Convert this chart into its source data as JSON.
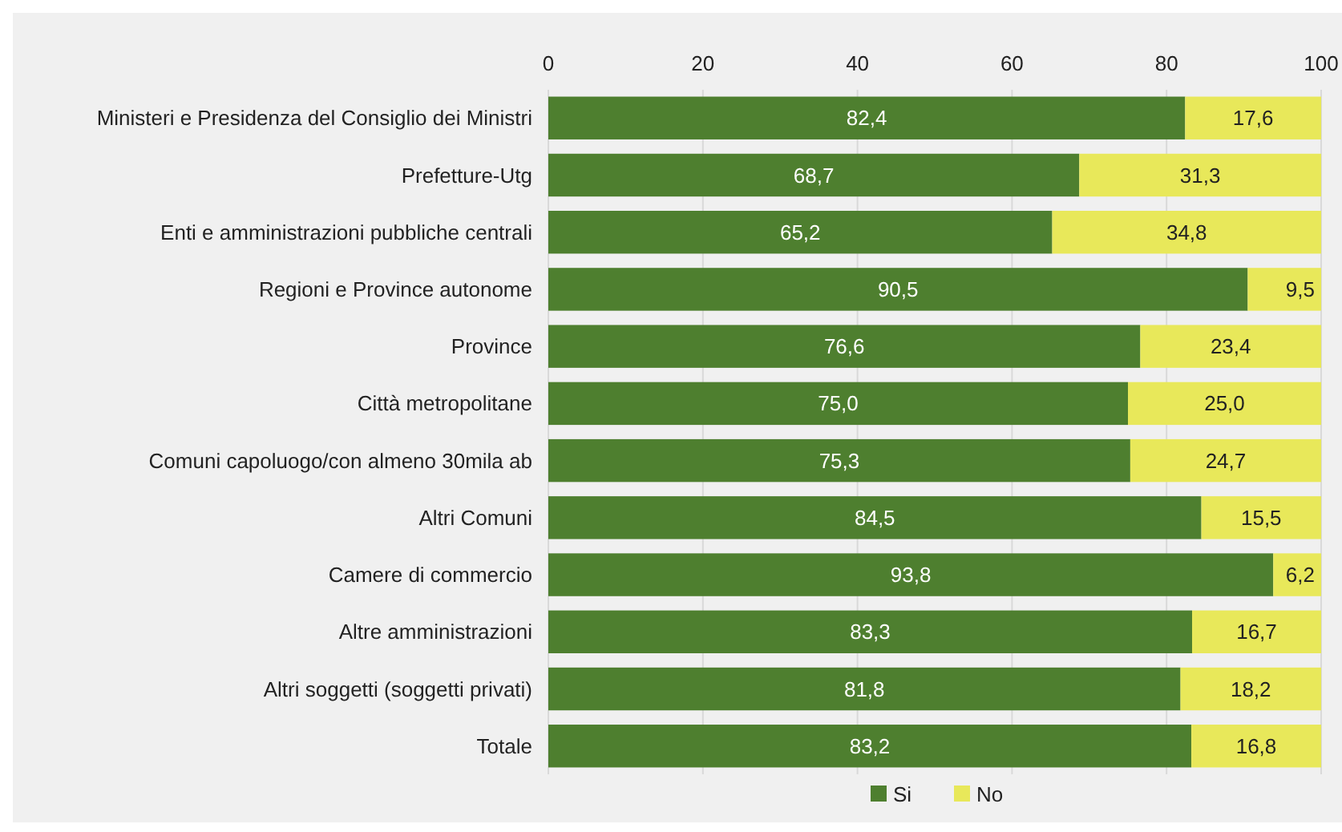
{
  "chart_data": {
    "type": "bar",
    "orientation": "horizontal",
    "stacked": true,
    "categories": [
      "Ministeri e Presidenza del Consiglio dei Ministri",
      "Prefetture-Utg",
      "Enti e amministrazioni pubbliche centrali",
      "Regioni e Province autonome",
      "Province",
      "Città metropolitane",
      "Comuni capoluogo/con almeno 30mila ab",
      "Altri Comuni",
      "Camere di commercio",
      "Altre amministrazioni ",
      "Altri soggetti (soggetti privati)",
      "Totale"
    ],
    "series": [
      {
        "name": "Si",
        "color": "#4e7f2f",
        "values": [
          82.4,
          68.7,
          65.2,
          90.5,
          76.6,
          75.0,
          75.3,
          84.5,
          93.8,
          83.3,
          81.8,
          83.2
        ],
        "value_labels": [
          "82,4",
          "68,7",
          "65,2",
          "90,5",
          "76,6",
          "75,0",
          "75,3",
          "84,5",
          "93,8",
          "83,3",
          "81,8",
          "83,2"
        ]
      },
      {
        "name": "No",
        "color": "#e8e85a",
        "values": [
          17.6,
          31.3,
          34.8,
          9.5,
          23.4,
          25.0,
          24.7,
          15.5,
          6.2,
          16.7,
          18.2,
          16.8
        ],
        "value_labels": [
          "17,6",
          "31,3",
          "34,8",
          "9,5",
          "23,4",
          "25,0",
          "24,7",
          "15,5",
          "6,2",
          "16,7",
          "18,2",
          "16,8"
        ]
      }
    ],
    "xlim": [
      0,
      100
    ],
    "xticks": [
      0,
      20,
      40,
      60,
      80,
      100
    ],
    "grid": "x",
    "legend": "bottom"
  }
}
